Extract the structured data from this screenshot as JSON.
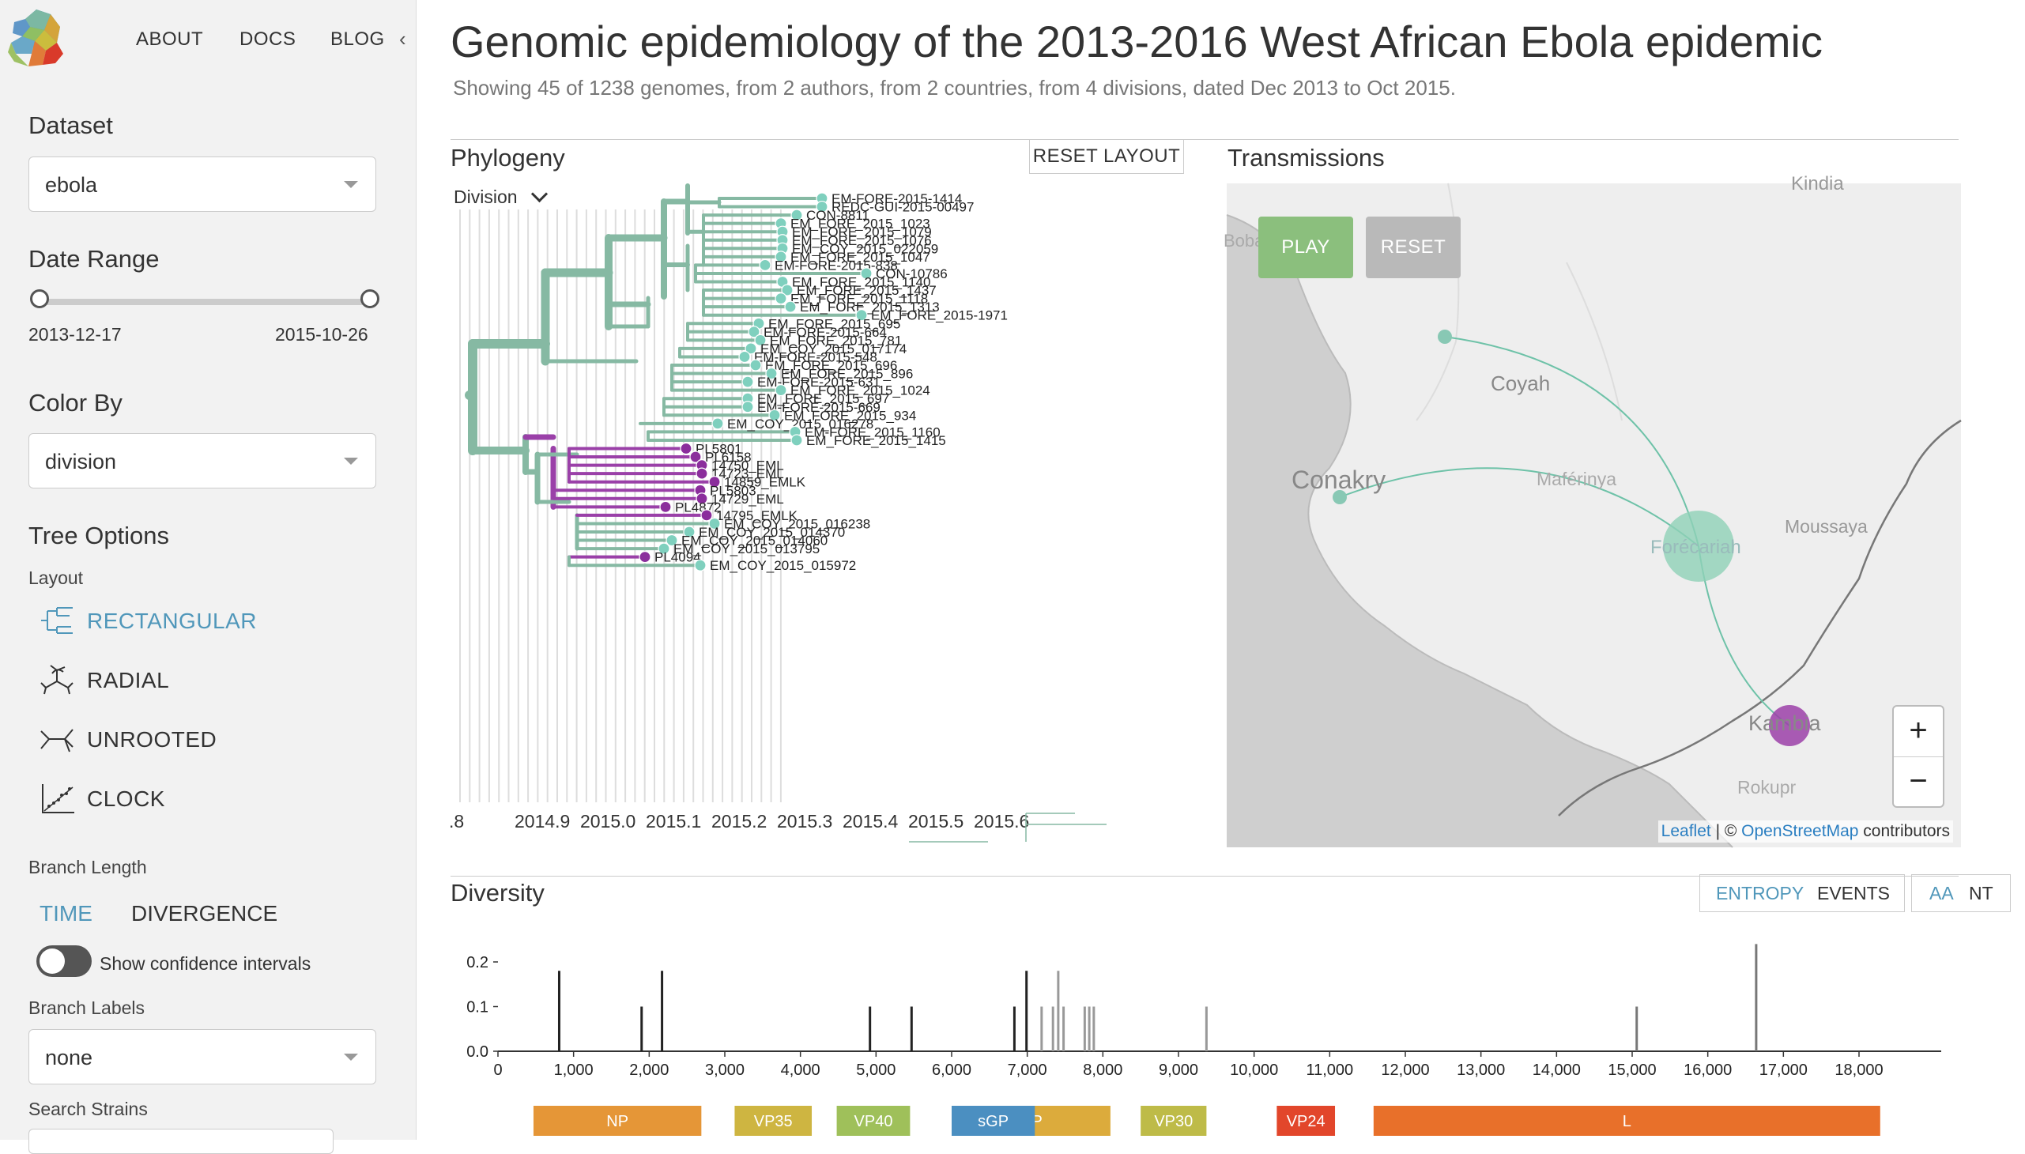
{
  "nav": {
    "about": "ABOUT",
    "docs": "DOCS",
    "blog": "BLOG",
    "collapse_icon": "chevron-left-icon"
  },
  "sidebar": {
    "dataset_label": "Dataset",
    "dataset_value": "ebola",
    "date_range_label": "Date Range",
    "date_start": "2013-12-17",
    "date_end": "2015-10-26",
    "color_by_label": "Color By",
    "color_by_value": "division",
    "tree_options_label": "Tree Options",
    "layout_label": "Layout",
    "layouts": [
      {
        "label": "RECTANGULAR",
        "icon": "rectangular-tree-icon",
        "active": true
      },
      {
        "label": "RADIAL",
        "icon": "radial-tree-icon",
        "active": false
      },
      {
        "label": "UNROOTED",
        "icon": "unrooted-tree-icon",
        "active": false
      },
      {
        "label": "CLOCK",
        "icon": "clock-scatter-icon",
        "active": false
      }
    ],
    "branch_length_label": "Branch Length",
    "branch_length_time": "TIME",
    "branch_length_divergence": "DIVERGENCE",
    "confidence_label": "Show confidence intervals",
    "branch_labels_label": "Branch Labels",
    "branch_labels_value": "none",
    "search_strains_label": "Search Strains"
  },
  "header": {
    "title": "Genomic epidemiology of the 2013-2016 West African Ebola epidemic",
    "subtitle": "Showing 45 of 1238 genomes, from 2 authors, from 2 countries, from 4 divisions, dated Dec 2013 to Oct 2015."
  },
  "phylogeny": {
    "title": "Phylogeny",
    "reset_label": "RESET LAYOUT",
    "legend_label": "Division",
    "axis_ticks": [
      ".8",
      "2014.9",
      "2015.0",
      "2015.1",
      "2015.2",
      "2015.3",
      "2015.4",
      "2015.5",
      "2015.6"
    ],
    "tips": [
      {
        "label": "EM-FORE-2015-1414",
        "clade": "g"
      },
      {
        "label": "REDC-GUI-2015-00497",
        "clade": "g"
      },
      {
        "label": "CON-8811",
        "clade": "g"
      },
      {
        "label": "EM_FORE_2015_1023",
        "clade": "g"
      },
      {
        "label": "EM_FORE_2015_1079",
        "clade": "g"
      },
      {
        "label": "EM_FORE_2015_1076",
        "clade": "g"
      },
      {
        "label": "EM_COY_2015_022059",
        "clade": "g"
      },
      {
        "label": "EM_FORE_2015_1047",
        "clade": "g"
      },
      {
        "label": "EM-FORE-2015-838",
        "clade": "g"
      },
      {
        "label": "CON-10786",
        "clade": "g"
      },
      {
        "label": "EM_FORE_2015_1140",
        "clade": "g"
      },
      {
        "label": "EM_FORE_2015_1437",
        "clade": "g"
      },
      {
        "label": "EM_FORE_2015_1118",
        "clade": "g"
      },
      {
        "label": "EM_FORE_2015_1313",
        "clade": "g"
      },
      {
        "label": "EM_FORE_2015-1971",
        "clade": "g"
      },
      {
        "label": "EM_FORE_2015_695",
        "clade": "g"
      },
      {
        "label": "EM-FORE-2015-664",
        "clade": "g"
      },
      {
        "label": "EM_FORE_2015_781",
        "clade": "g"
      },
      {
        "label": "EM_COY_2015_017174",
        "clade": "g"
      },
      {
        "label": "EM-FORE-2015-548",
        "clade": "g"
      },
      {
        "label": "EM_FORE_2015_696",
        "clade": "g"
      },
      {
        "label": "EM_FORE_2015_896",
        "clade": "g"
      },
      {
        "label": "EM-FORE-2015-631",
        "clade": "g"
      },
      {
        "label": "EM_FORE_2015_1024",
        "clade": "g"
      },
      {
        "label": "EM_FORE_2015_697",
        "clade": "g"
      },
      {
        "label": "EM-FORE-2015-669",
        "clade": "g"
      },
      {
        "label": "EM_FORE_2015_934",
        "clade": "g"
      },
      {
        "label": "EM_COY_2015_016278",
        "clade": "g"
      },
      {
        "label": "EM-FORE_2015_1160",
        "clade": "g"
      },
      {
        "label": "EM_FORE_2015_1415",
        "clade": "g"
      },
      {
        "label": "PL5801",
        "clade": "p"
      },
      {
        "label": "PL6158",
        "clade": "p"
      },
      {
        "label": "14750_EML",
        "clade": "p"
      },
      {
        "label": "14723_EML",
        "clade": "p"
      },
      {
        "label": "14859_EMLK",
        "clade": "p"
      },
      {
        "label": "PL5803",
        "clade": "p"
      },
      {
        "label": "14729_EML",
        "clade": "p"
      },
      {
        "label": "PL4872",
        "clade": "p"
      },
      {
        "label": "14795_EMLK",
        "clade": "p"
      },
      {
        "label": "EM_COY_2015_016238",
        "clade": "g"
      },
      {
        "label": "EM_COY_2015_014370",
        "clade": "g"
      },
      {
        "label": "EM_COY_2015_014060",
        "clade": "g"
      },
      {
        "label": "EM_COY_2015_013795",
        "clade": "g"
      },
      {
        "label": "PL4094",
        "clade": "p"
      },
      {
        "label": "EM_COY_2015_015972",
        "clade": "g"
      }
    ]
  },
  "transmissions": {
    "title": "Transmissions",
    "play_label": "PLAY",
    "reset_label": "RESET",
    "places": [
      "Kindia",
      "Coyah",
      "Conakry",
      "Maférinya",
      "Forécariah",
      "Moussaya",
      "Kambia",
      "Rokupr",
      "Boba"
    ],
    "zoom_in": "+",
    "zoom_out": "−",
    "attribution_leaflet": "Leaflet",
    "attribution_sep": " | © ",
    "attribution_osm": "OpenStreetMap",
    "attribution_rest": " contributors"
  },
  "diversity": {
    "title": "Diversity",
    "entropy_label": "ENTROPY",
    "events_label": "EVENTS",
    "aa_label": "AA",
    "nt_label": "NT"
  },
  "chart_data": {
    "type": "bar",
    "title": "Diversity",
    "xlabel": "",
    "ylabel": "",
    "xlim": [
      0,
      19000
    ],
    "ylim": [
      0,
      0.25
    ],
    "x_ticks": [
      "0",
      "1,000",
      "2,000",
      "3,000",
      "4,000",
      "5,000",
      "6,000",
      "7,000",
      "8,000",
      "9,000",
      "10,000",
      "11,000",
      "12,000",
      "13,000",
      "14,000",
      "15,000",
      "16,000",
      "17,000",
      "18,000"
    ],
    "y_ticks": [
      "0.0",
      "0.1",
      "0.2"
    ],
    "bars": [
      {
        "x": 810,
        "y": 0.18,
        "color": "#222222"
      },
      {
        "x": 1900,
        "y": 0.1,
        "color": "#222222"
      },
      {
        "x": 2170,
        "y": 0.18,
        "color": "#222222"
      },
      {
        "x": 4920,
        "y": 0.1,
        "color": "#222222"
      },
      {
        "x": 5470,
        "y": 0.1,
        "color": "#222222"
      },
      {
        "x": 6830,
        "y": 0.1,
        "color": "#222222"
      },
      {
        "x": 6990,
        "y": 0.18,
        "color": "#222222"
      },
      {
        "x": 7190,
        "y": 0.1,
        "color": "#999999"
      },
      {
        "x": 7340,
        "y": 0.1,
        "color": "#999999"
      },
      {
        "x": 7410,
        "y": 0.18,
        "color": "#999999"
      },
      {
        "x": 7480,
        "y": 0.1,
        "color": "#999999"
      },
      {
        "x": 7760,
        "y": 0.1,
        "color": "#999999"
      },
      {
        "x": 7820,
        "y": 0.1,
        "color": "#999999"
      },
      {
        "x": 7880,
        "y": 0.1,
        "color": "#999999"
      },
      {
        "x": 9370,
        "y": 0.1,
        "color": "#999999"
      },
      {
        "x": 15060,
        "y": 0.1,
        "color": "#777777"
      },
      {
        "x": 16640,
        "y": 0.24,
        "color": "#777777"
      }
    ],
    "genes": [
      {
        "name": "NP",
        "start": 470,
        "end": 2690,
        "color": "#E59637"
      },
      {
        "name": "VP35",
        "start": 3130,
        "end": 4150,
        "color": "#CEB541"
      },
      {
        "name": "VP40",
        "start": 4480,
        "end": 5450,
        "color": "#9FC05A"
      },
      {
        "name": "GP",
        "start": 6000,
        "end": 8100,
        "color": "#DCAB3C"
      },
      {
        "name": "sGP",
        "start": 6000,
        "end": 7100,
        "color": "#4B8FC1"
      },
      {
        "name": "VP30",
        "start": 8500,
        "end": 9370,
        "color": "#BEBB48"
      },
      {
        "name": "VP24",
        "start": 10300,
        "end": 11070,
        "color": "#E2462B"
      },
      {
        "name": "L",
        "start": 11580,
        "end": 18280,
        "color": "#E8702A"
      }
    ]
  }
}
